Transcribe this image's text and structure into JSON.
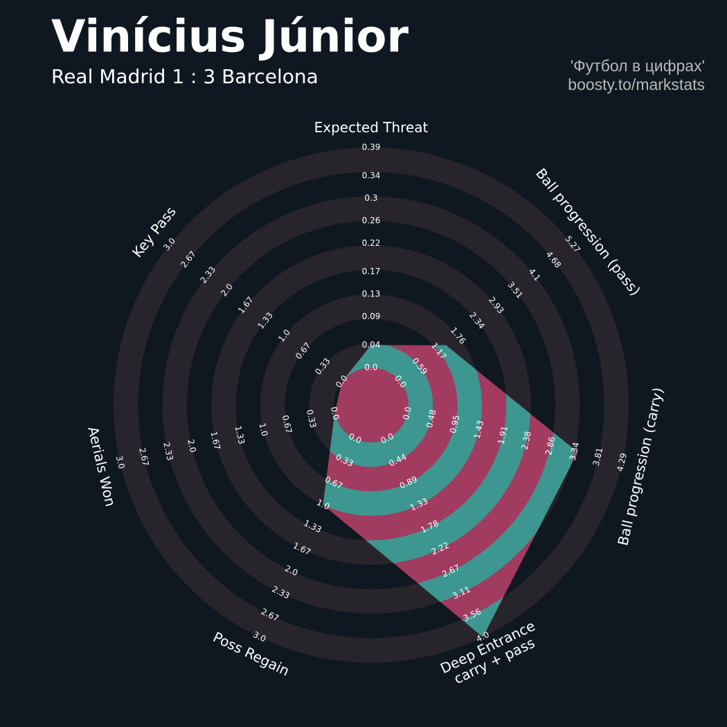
{
  "chart_data": {
    "type": "radar",
    "title": "Vinícius Júnior",
    "subtitle": "Real Madrid 1 : 3 Barcelona",
    "credits": [
      "'Футбол в цифрах'",
      "boosty.to/markstats"
    ],
    "axes": [
      {
        "name": "Expected Threat",
        "ticks": [
          {
            "value": 0,
            "label": "0.0"
          },
          0.04,
          0.09,
          0.13,
          0.17,
          0.22,
          0.26,
          0.3,
          0.34,
          0.39
        ]
      },
      {
        "name": "Ball progression (pass)",
        "ticks": [
          {
            "value": 0,
            "label": "0.0"
          },
          0.59,
          1.17,
          1.76,
          2.34,
          2.93,
          3.51,
          4.1,
          4.68,
          5.27
        ]
      },
      {
        "name": "Ball progression (carry)",
        "ticks": [
          {
            "value": 0,
            "label": "0.0"
          },
          0.48,
          0.95,
          1.43,
          1.91,
          2.38,
          2.86,
          3.34,
          3.81,
          4.29
        ]
      },
      {
        "name": "Deep Entrance\ncarry + pass",
        "ticks": [
          {
            "value": 0,
            "label": "0.0"
          },
          0.44,
          0.89,
          1.33,
          1.78,
          2.22,
          2.67,
          3.11,
          3.56,
          {
            "value": 4,
            "label": "4.0"
          }
        ]
      },
      {
        "name": "Poss Regain",
        "ticks": [
          {
            "value": 0,
            "label": "0.0"
          },
          0.33,
          0.67,
          {
            "value": 1,
            "label": "1.0"
          },
          1.33,
          1.67,
          {
            "value": 2,
            "label": "2.0"
          },
          2.33,
          2.67,
          {
            "value": 3,
            "label": "3.0"
          }
        ]
      },
      {
        "name": "Aerials Won",
        "ticks": [
          {
            "value": 0,
            "label": "0.0"
          },
          0.33,
          0.67,
          {
            "value": 1,
            "label": "1.0"
          },
          1.33,
          1.67,
          {
            "value": 2,
            "label": "2.0"
          },
          2.33,
          2.67,
          {
            "value": 3,
            "label": "3.0"
          }
        ]
      },
      {
        "name": "Key Pass",
        "ticks": [
          {
            "value": 0,
            "label": "0.0"
          },
          0.33,
          0.67,
          {
            "value": 1,
            "label": "1.0"
          },
          1.33,
          1.67,
          {
            "value": 2,
            "label": "2.0"
          },
          2.33,
          2.67,
          {
            "value": 3,
            "label": "3.0"
          }
        ]
      }
    ],
    "values": [
      0.04,
      1.4,
      3.4,
      4.0,
      1.0,
      0.0,
      0.0
    ],
    "colors": {
      "background": "#0f1820",
      "rings": "#28242b",
      "fill": "#a13b60",
      "fill_alt": "#3e9690"
    }
  }
}
